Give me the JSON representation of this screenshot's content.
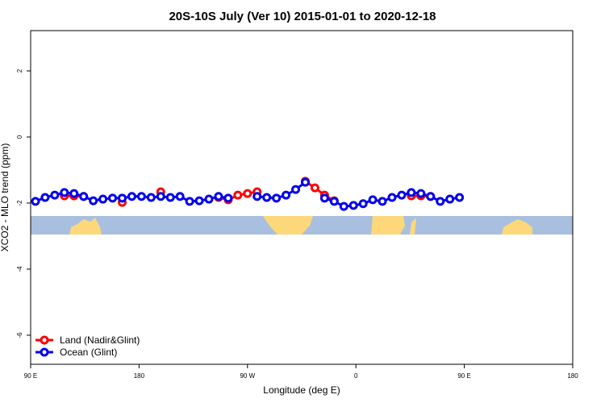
{
  "chart_data": {
    "type": "line",
    "title": "20S-10S July (Ver 10)   2015-01-01 to 2020-12-18",
    "x_label": "Longitude (deg E)",
    "y_label": "XCO2 - MLO trend (ppm)",
    "xlim": [
      90,
      540
    ],
    "ylim": [
      -6.88,
      3.22
    ],
    "xticks": [
      {
        "value": 90,
        "label": "90 E"
      },
      {
        "value": 180,
        "label": "180"
      },
      {
        "value": 270,
        "label": "90 W"
      },
      {
        "value": 360,
        "label": "0"
      },
      {
        "value": 450,
        "label": "90 E"
      },
      {
        "value": 540,
        "label": "180"
      }
    ],
    "yticks": [
      2,
      0,
      -2,
      -4,
      -6
    ],
    "legend": "bottom-left",
    "x": [
      94,
      102,
      110,
      118,
      126,
      134,
      142,
      150,
      158,
      166,
      174,
      182,
      190,
      198,
      206,
      214,
      222,
      230,
      238,
      246,
      254,
      262,
      270,
      278,
      286,
      294,
      302,
      310,
      318,
      326,
      334,
      342,
      350,
      358,
      366,
      374,
      382,
      390,
      398,
      406,
      414,
      422,
      430,
      438,
      446
    ],
    "series": [
      {
        "name": "Land (Nadir&Glint)",
        "color": "#ff0000",
        "values": [
          null,
          null,
          null,
          -1.78,
          -1.78,
          -1.8,
          null,
          null,
          null,
          -1.98,
          null,
          null,
          null,
          -1.66,
          null,
          null,
          null,
          null,
          null,
          -1.83,
          -1.9,
          -1.76,
          -1.71,
          -1.66,
          null,
          null,
          null,
          null,
          -1.34,
          -1.54,
          -1.76,
          -1.93,
          null,
          null,
          null,
          null,
          null,
          null,
          null,
          -1.78,
          -1.78,
          -1.8,
          null,
          null,
          null
        ]
      },
      {
        "name": "Ocean (Glint)",
        "color": "#0000ee",
        "values": [
          -1.95,
          -1.83,
          -1.76,
          -1.68,
          -1.71,
          -1.8,
          -1.93,
          -1.88,
          -1.85,
          -1.85,
          -1.8,
          -1.8,
          -1.83,
          -1.8,
          -1.83,
          -1.8,
          -1.95,
          -1.93,
          -1.88,
          -1.8,
          -1.85,
          null,
          null,
          -1.8,
          -1.83,
          -1.85,
          -1.76,
          -1.59,
          -1.37,
          null,
          -1.85,
          -1.95,
          -2.1,
          -2.07,
          -2.02,
          -1.9,
          -1.95,
          -1.83,
          -1.76,
          -1.68,
          -1.71,
          -1.8,
          -1.95,
          -1.88,
          -1.83
        ]
      }
    ]
  }
}
